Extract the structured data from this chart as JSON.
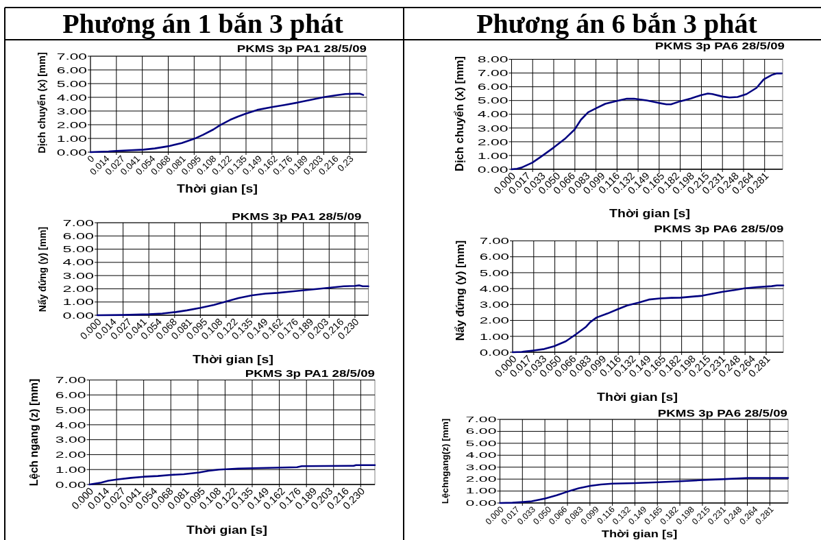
{
  "chart_data": [
    {
      "type": "line",
      "title": "Phương án 1 bắn 3 phát",
      "subtitle": "PKMS 3p PA1 28/5/09",
      "xlabel": "Thời gian [s]",
      "ylabel": "Dịch chuyển (x) [mm]",
      "color": "#000080",
      "grid": true,
      "x": [
        0,
        0.016,
        0.023,
        0.035,
        0.047,
        0.057,
        0.069,
        0.081,
        0.092,
        0.1,
        0.109,
        0.115,
        0.124,
        0.131,
        0.138,
        0.148,
        0.161,
        0.172,
        0.184,
        0.196,
        0.207,
        0.218,
        0.226,
        0.235,
        0.239,
        0.242
      ],
      "values": [
        0,
        0.05,
        0.09,
        0.14,
        0.18,
        0.27,
        0.43,
        0.66,
        0.97,
        1.27,
        1.65,
        1.97,
        2.36,
        2.6,
        2.81,
        3.08,
        3.29,
        3.44,
        3.62,
        3.83,
        4.01,
        4.15,
        4.24,
        4.26,
        4.26,
        4.17
      ],
      "xlim": [
        0,
        0.245
      ],
      "xticks": [
        {
          "value": 0,
          "label": "0"
        },
        {
          "value": 0.0135,
          "label": "0.014"
        },
        {
          "value": 0.0271,
          "label": "0.027"
        },
        {
          "value": 0.0406,
          "label": "0.041"
        },
        {
          "value": 0.0541,
          "label": "0.054"
        },
        {
          "value": 0.0676,
          "label": "0.068"
        },
        {
          "value": 0.0812,
          "label": "0.081"
        },
        {
          "value": 0.0947,
          "label": "0.095"
        },
        {
          "value": 0.1082,
          "label": "0.108"
        },
        {
          "value": 0.1218,
          "label": "0.122"
        },
        {
          "value": 0.1353,
          "label": "0.135"
        },
        {
          "value": 0.1488,
          "label": "0.149"
        },
        {
          "value": 0.1624,
          "label": "0.162"
        },
        {
          "value": 0.1759,
          "label": "0.176"
        },
        {
          "value": 0.1894,
          "label": "0.189"
        },
        {
          "value": 0.2029,
          "label": "0.203"
        },
        {
          "value": 0.2165,
          "label": "0.216"
        },
        {
          "value": 0.23,
          "label": "0.23"
        },
        {
          "value": 0.023,
          "label": null
        },
        {
          "value": 0.046,
          "label": null
        },
        {
          "value": 0.069,
          "label": null
        },
        {
          "value": 0.092,
          "label": null
        },
        {
          "value": 0.115,
          "label": null
        },
        {
          "value": 0.138,
          "label": null
        },
        {
          "value": 0.161,
          "label": null
        },
        {
          "value": 0.184,
          "label": null
        },
        {
          "value": 0.207,
          "label": null
        },
        {
          "value": 0.23,
          "label": null
        }
      ],
      "ylim": [
        0,
        7
      ],
      "yticks": [
        {
          "value": 0,
          "label": "0.00"
        },
        {
          "value": 1,
          "label": "1.00"
        },
        {
          "value": 2,
          "label": "2.00"
        },
        {
          "value": 3,
          "label": "3.00"
        },
        {
          "value": 4,
          "label": "4.00"
        },
        {
          "value": 5,
          "label": "5.00"
        },
        {
          "value": 6,
          "label": "6.00"
        },
        {
          "value": 7,
          "label": "7.00"
        }
      ]
    },
    {
      "type": "line",
      "title": "PKMS 3p PA1 28/5/09",
      "xlabel": "Thời gian [s]",
      "ylabel": "Nẩy đứng (y) [mm]",
      "color": "#000080",
      "grid": true,
      "x": [
        0,
        0.023,
        0.046,
        0.058,
        0.07,
        0.08,
        0.092,
        0.104,
        0.115,
        0.126,
        0.138,
        0.15,
        0.161,
        0.174,
        0.185,
        0.196,
        0.208,
        0.22,
        0.23,
        0.234,
        0.237,
        0.242
      ],
      "values": [
        0,
        0.02,
        0.07,
        0.13,
        0.24,
        0.37,
        0.56,
        0.78,
        1.04,
        1.3,
        1.5,
        1.63,
        1.69,
        1.8,
        1.89,
        1.98,
        2.09,
        2.19,
        2.22,
        2.26,
        2.19,
        2.19
      ],
      "xlim": [
        0,
        0.242
      ],
      "xticks": [
        {
          "value": 0,
          "label": "0.000"
        },
        {
          "value": 0.0135,
          "label": "0.014"
        },
        {
          "value": 0.0271,
          "label": "0.027"
        },
        {
          "value": 0.0406,
          "label": "0.041"
        },
        {
          "value": 0.0541,
          "label": "0.054"
        },
        {
          "value": 0.0676,
          "label": "0.068"
        },
        {
          "value": 0.0812,
          "label": "0.081"
        },
        {
          "value": 0.0947,
          "label": "0.095"
        },
        {
          "value": 0.1082,
          "label": "0.108"
        },
        {
          "value": 0.1218,
          "label": "0.122"
        },
        {
          "value": 0.1353,
          "label": "0.135"
        },
        {
          "value": 0.1488,
          "label": "0.149"
        },
        {
          "value": 0.1624,
          "label": "0.162"
        },
        {
          "value": 0.1759,
          "label": "0.176"
        },
        {
          "value": 0.1894,
          "label": "0.189"
        },
        {
          "value": 0.2029,
          "label": "0.203"
        },
        {
          "value": 0.2165,
          "label": "0.216"
        },
        {
          "value": 0.23,
          "label": "0.230"
        },
        {
          "value": 0.023,
          "label": null
        },
        {
          "value": 0.046,
          "label": null
        },
        {
          "value": 0.069,
          "label": null
        },
        {
          "value": 0.092,
          "label": null
        },
        {
          "value": 0.115,
          "label": null
        },
        {
          "value": 0.138,
          "label": null
        },
        {
          "value": 0.161,
          "label": null
        },
        {
          "value": 0.184,
          "label": null
        },
        {
          "value": 0.207,
          "label": null
        },
        {
          "value": 0.23,
          "label": null
        }
      ],
      "ylim": [
        0,
        7
      ],
      "yticks": [
        {
          "value": 0,
          "label": "0.00"
        },
        {
          "value": 1,
          "label": "1.00"
        },
        {
          "value": 2,
          "label": "2.00"
        },
        {
          "value": 3,
          "label": "3.00"
        },
        {
          "value": 4,
          "label": "4.00"
        },
        {
          "value": 5,
          "label": "5.00"
        },
        {
          "value": 6,
          "label": "6.00"
        },
        {
          "value": 7,
          "label": "7.00"
        }
      ]
    },
    {
      "type": "line",
      "title": "PKMS 3p PA1 28/5/09",
      "xlabel": "Thời gian [s]",
      "ylabel": "Lệch ngang (z) [mm]",
      "color": "#000080",
      "grid": true,
      "x": [
        0,
        0.01,
        0.016,
        0.023,
        0.035,
        0.046,
        0.058,
        0.069,
        0.08,
        0.093,
        0.101,
        0.11,
        0.116,
        0.126,
        0.151,
        0.176,
        0.18,
        0.224,
        0.226,
        0.242
      ],
      "values": [
        0,
        0.13,
        0.25,
        0.33,
        0.44,
        0.52,
        0.57,
        0.64,
        0.69,
        0.8,
        0.92,
        1,
        1.02,
        1.07,
        1.11,
        1.16,
        1.23,
        1.25,
        1.3,
        1.3
      ],
      "xlim": [
        0,
        0.242
      ],
      "xticks": [
        {
          "value": 0,
          "label": "0.000"
        },
        {
          "value": 0.0135,
          "label": "0.014"
        },
        {
          "value": 0.0271,
          "label": "0.027"
        },
        {
          "value": 0.0406,
          "label": "0.041"
        },
        {
          "value": 0.0541,
          "label": "0.054"
        },
        {
          "value": 0.0676,
          "label": "0.068"
        },
        {
          "value": 0.0812,
          "label": "0.081"
        },
        {
          "value": 0.0947,
          "label": "0.095"
        },
        {
          "value": 0.1082,
          "label": "0.108"
        },
        {
          "value": 0.1218,
          "label": "0.122"
        },
        {
          "value": 0.1353,
          "label": "0.135"
        },
        {
          "value": 0.1488,
          "label": "0.149"
        },
        {
          "value": 0.1624,
          "label": "0.162"
        },
        {
          "value": 0.1759,
          "label": "0.176"
        },
        {
          "value": 0.1894,
          "label": "0.189"
        },
        {
          "value": 0.2029,
          "label": "0.203"
        },
        {
          "value": 0.2165,
          "label": "0.216"
        },
        {
          "value": 0.23,
          "label": "0.230"
        },
        {
          "value": 0.023,
          "label": null
        },
        {
          "value": 0.046,
          "label": null
        },
        {
          "value": 0.069,
          "label": null
        },
        {
          "value": 0.092,
          "label": null
        },
        {
          "value": 0.115,
          "label": null
        },
        {
          "value": 0.138,
          "label": null
        },
        {
          "value": 0.161,
          "label": null
        },
        {
          "value": 0.184,
          "label": null
        },
        {
          "value": 0.207,
          "label": null
        },
        {
          "value": 0.23,
          "label": null
        }
      ],
      "ylim": [
        0,
        7
      ],
      "yticks": [
        {
          "value": 0,
          "label": "0.00"
        },
        {
          "value": 1,
          "label": "1.00"
        },
        {
          "value": 2,
          "label": "2.00"
        },
        {
          "value": 3,
          "label": "3.00"
        },
        {
          "value": 4,
          "label": "4.00"
        },
        {
          "value": 5,
          "label": "5.00"
        },
        {
          "value": 6,
          "label": "6.00"
        },
        {
          "value": 7,
          "label": "7.00"
        }
      ]
    },
    {
      "type": "line",
      "title": "Phương án 6 bắn 3 phát",
      "subtitle": "PKMS 3p PA6 28/5/09",
      "xlabel": "Thời gian [s]",
      "ylabel": "Dịch chuyển (x) [mm]",
      "color": "#000080",
      "grid": true,
      "x": [
        0,
        0.006,
        0.011,
        0.023,
        0.033,
        0.047,
        0.06,
        0.07,
        0.077,
        0.085,
        0.094,
        0.104,
        0.117,
        0.128,
        0.136,
        0.15,
        0.163,
        0.172,
        0.177,
        0.187,
        0.199,
        0.21,
        0.218,
        0.223,
        0.234,
        0.242,
        0.251,
        0.261,
        0.272,
        0.28,
        0.289,
        0.294,
        0.3
      ],
      "values": [
        0,
        0.04,
        0.12,
        0.48,
        0.93,
        1.59,
        2.26,
        2.89,
        3.6,
        4.14,
        4.44,
        4.76,
        4.97,
        5.13,
        5.13,
        5.01,
        4.83,
        4.72,
        4.72,
        4.94,
        5.15,
        5.38,
        5.51,
        5.47,
        5.29,
        5.22,
        5.26,
        5.47,
        5.92,
        6.54,
        6.86,
        6.97,
        6.97
      ],
      "xlim": [
        0,
        0.301
      ],
      "xticks": [
        {
          "value": 0,
          "label": "0.000"
        },
        {
          "value": 0.0165,
          "label": "0.017"
        },
        {
          "value": 0.0331,
          "label": "0.033"
        },
        {
          "value": 0.0496,
          "label": "0.050"
        },
        {
          "value": 0.0661,
          "label": "0.066"
        },
        {
          "value": 0.0826,
          "label": "0.083"
        },
        {
          "value": 0.0992,
          "label": "0.099"
        },
        {
          "value": 0.1157,
          "label": "0.116"
        },
        {
          "value": 0.1322,
          "label": "0.132"
        },
        {
          "value": 0.1488,
          "label": "0.149"
        },
        {
          "value": 0.1653,
          "label": "0.165"
        },
        {
          "value": 0.1818,
          "label": "0.182"
        },
        {
          "value": 0.1984,
          "label": "0.198"
        },
        {
          "value": 0.2149,
          "label": "0.215"
        },
        {
          "value": 0.2314,
          "label": "0.231"
        },
        {
          "value": 0.2479,
          "label": "0.248"
        },
        {
          "value": 0.2645,
          "label": "0.264"
        },
        {
          "value": 0.281,
          "label": "0.281"
        },
        {
          "value": 0.0234,
          "label": null
        },
        {
          "value": 0.0468,
          "label": null
        },
        {
          "value": 0.0703,
          "label": null
        },
        {
          "value": 0.0937,
          "label": null
        },
        {
          "value": 0.1171,
          "label": null
        },
        {
          "value": 0.1405,
          "label": null
        },
        {
          "value": 0.1639,
          "label": null
        },
        {
          "value": 0.1873,
          "label": null
        },
        {
          "value": 0.2108,
          "label": null
        },
        {
          "value": 0.2342,
          "label": null
        },
        {
          "value": 0.2576,
          "label": null
        },
        {
          "value": 0.281,
          "label": null
        }
      ],
      "ylim": [
        0,
        8
      ],
      "yticks": [
        {
          "value": 0,
          "label": "0.00"
        },
        {
          "value": 1,
          "label": "1.00"
        },
        {
          "value": 2,
          "label": "2.00"
        },
        {
          "value": 3,
          "label": "3.00"
        },
        {
          "value": 4,
          "label": "4.00"
        },
        {
          "value": 5,
          "label": "5.00"
        },
        {
          "value": 6,
          "label": "6.00"
        },
        {
          "value": 7,
          "label": "7.00"
        },
        {
          "value": 8,
          "label": "8.00"
        }
      ]
    },
    {
      "type": "line",
      "title": "PKMS 3p PA6 28/5/09",
      "xlabel": "Thời gian [s]",
      "ylabel": "Nẩy đứng (y) [mm]",
      "color": "#000080",
      "grid": true,
      "x": [
        0,
        0.01,
        0.023,
        0.035,
        0.046,
        0.059,
        0.07,
        0.081,
        0.086,
        0.093,
        0.105,
        0.116,
        0.127,
        0.14,
        0.151,
        0.163,
        0.176,
        0.186,
        0.21,
        0.222,
        0.233,
        0.246,
        0.257,
        0.271,
        0.287,
        0.293,
        0.3
      ],
      "values": [
        0,
        0.02,
        0.11,
        0.2,
        0.38,
        0.69,
        1.12,
        1.58,
        1.89,
        2.18,
        2.43,
        2.69,
        2.94,
        3.12,
        3.31,
        3.38,
        3.42,
        3.43,
        3.55,
        3.68,
        3.8,
        3.91,
        4.02,
        4.09,
        4.15,
        4.2,
        4.2
      ],
      "xlim": [
        0,
        0.3
      ],
      "xticks": [
        {
          "value": 0,
          "label": "0.000"
        },
        {
          "value": 0.0165,
          "label": "0.017"
        },
        {
          "value": 0.0331,
          "label": "0.033"
        },
        {
          "value": 0.0496,
          "label": "0.050"
        },
        {
          "value": 0.0661,
          "label": "0.066"
        },
        {
          "value": 0.0826,
          "label": "0.083"
        },
        {
          "value": 0.0992,
          "label": "0.099"
        },
        {
          "value": 0.1157,
          "label": "0.116"
        },
        {
          "value": 0.1322,
          "label": "0.132"
        },
        {
          "value": 0.1488,
          "label": "0.149"
        },
        {
          "value": 0.1653,
          "label": "0.165"
        },
        {
          "value": 0.1818,
          "label": "0.182"
        },
        {
          "value": 0.1984,
          "label": "0.198"
        },
        {
          "value": 0.2149,
          "label": "0.215"
        },
        {
          "value": 0.2314,
          "label": "0.231"
        },
        {
          "value": 0.2479,
          "label": "0.248"
        },
        {
          "value": 0.2645,
          "label": "0.264"
        },
        {
          "value": 0.281,
          "label": "0.281"
        },
        {
          "value": 0.0234,
          "label": null
        },
        {
          "value": 0.0468,
          "label": null
        },
        {
          "value": 0.0703,
          "label": null
        },
        {
          "value": 0.0937,
          "label": null
        },
        {
          "value": 0.1171,
          "label": null
        },
        {
          "value": 0.1405,
          "label": null
        },
        {
          "value": 0.1639,
          "label": null
        },
        {
          "value": 0.1873,
          "label": null
        },
        {
          "value": 0.2108,
          "label": null
        },
        {
          "value": 0.2342,
          "label": null
        },
        {
          "value": 0.2576,
          "label": null
        },
        {
          "value": 0.281,
          "label": null
        }
      ],
      "ylim": [
        0,
        7
      ],
      "yticks": [
        {
          "value": 0,
          "label": "0.00"
        },
        {
          "value": 1,
          "label": "1.00"
        },
        {
          "value": 2,
          "label": "2.00"
        },
        {
          "value": 3,
          "label": "3.00"
        },
        {
          "value": 4,
          "label": "4.00"
        },
        {
          "value": 5,
          "label": "5.00"
        },
        {
          "value": 6,
          "label": "6.00"
        },
        {
          "value": 7,
          "label": "7.00"
        }
      ]
    },
    {
      "type": "line",
      "title": "PKMS 3p PA6 28/5/09",
      "xlabel": "Thời gian [s]",
      "ylabel": "Lệchngang(z) [mm]",
      "color": "#000080",
      "grid": true,
      "x": [
        0,
        0.013,
        0.024,
        0.033,
        0.047,
        0.059,
        0.07,
        0.082,
        0.094,
        0.105,
        0.117,
        0.14,
        0.164,
        0.188,
        0.211,
        0.234,
        0.258,
        0.281,
        0.3
      ],
      "values": [
        0,
        0.02,
        0.08,
        0.14,
        0.37,
        0.65,
        0.94,
        1.23,
        1.43,
        1.55,
        1.62,
        1.66,
        1.74,
        1.82,
        1.92,
        2,
        2.09,
        2.09,
        2.09
      ],
      "xlim": [
        0,
        0.3
      ],
      "xticks": [
        {
          "value": 0,
          "label": "0.000"
        },
        {
          "value": 0.0165,
          "label": "0.017"
        },
        {
          "value": 0.0331,
          "label": "0.033"
        },
        {
          "value": 0.0496,
          "label": "0.050"
        },
        {
          "value": 0.0661,
          "label": "0.066"
        },
        {
          "value": 0.0826,
          "label": "0.083"
        },
        {
          "value": 0.0992,
          "label": "0.099"
        },
        {
          "value": 0.1157,
          "label": "0.116"
        },
        {
          "value": 0.1322,
          "label": "0.132"
        },
        {
          "value": 0.1488,
          "label": "0.149"
        },
        {
          "value": 0.1653,
          "label": "0.165"
        },
        {
          "value": 0.1818,
          "label": "0.182"
        },
        {
          "value": 0.1984,
          "label": "0.198"
        },
        {
          "value": 0.2149,
          "label": "0.215"
        },
        {
          "value": 0.2314,
          "label": "0.231"
        },
        {
          "value": 0.2479,
          "label": "0.248"
        },
        {
          "value": 0.2645,
          "label": "0.264"
        },
        {
          "value": 0.281,
          "label": "0.281"
        },
        {
          "value": 0.0234,
          "label": null
        },
        {
          "value": 0.0468,
          "label": null
        },
        {
          "value": 0.0703,
          "label": null
        },
        {
          "value": 0.0937,
          "label": null
        },
        {
          "value": 0.1171,
          "label": null
        },
        {
          "value": 0.1405,
          "label": null
        },
        {
          "value": 0.1639,
          "label": null
        },
        {
          "value": 0.1873,
          "label": null
        },
        {
          "value": 0.2108,
          "label": null
        },
        {
          "value": 0.2342,
          "label": null
        },
        {
          "value": 0.2576,
          "label": null
        },
        {
          "value": 0.281,
          "label": null
        }
      ],
      "ylim": [
        0,
        7
      ],
      "yticks": [
        {
          "value": 0,
          "label": "0.00"
        },
        {
          "value": 1,
          "label": "1.00"
        },
        {
          "value": 2,
          "label": "2.00"
        },
        {
          "value": 3,
          "label": "3.00"
        },
        {
          "value": 4,
          "label": "4.00"
        },
        {
          "value": 5,
          "label": "5.00"
        },
        {
          "value": 6,
          "label": "6.00"
        },
        {
          "value": 7,
          "label": "7.00"
        }
      ]
    }
  ]
}
